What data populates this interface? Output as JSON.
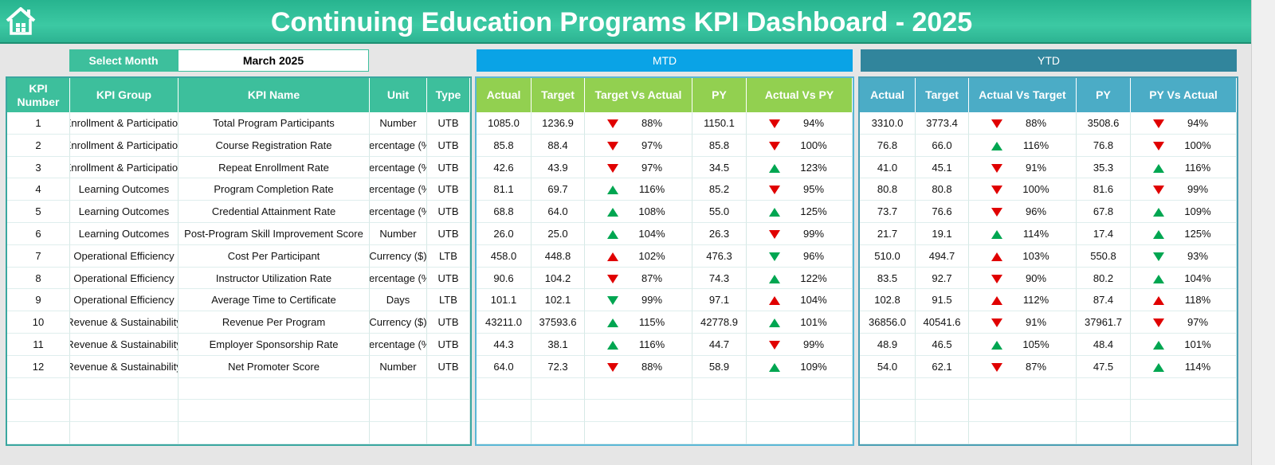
{
  "header": {
    "title": "Continuing Education Programs KPI Dashboard - 2025"
  },
  "month_selector": {
    "label": "Select Month",
    "value": "March 2025"
  },
  "kpi_table": {
    "columns": [
      "KPI Number",
      "KPI Group",
      "KPI Name",
      "Unit",
      "Type"
    ],
    "rows": [
      [
        "1",
        "Enrollment & Participation",
        "Total Program Participants",
        "Number",
        "UTB"
      ],
      [
        "2",
        "Enrollment & Participation",
        "Course Registration Rate",
        "Percentage (%)",
        "UTB"
      ],
      [
        "3",
        "Enrollment & Participation",
        "Repeat Enrollment Rate",
        "Percentage (%)",
        "UTB"
      ],
      [
        "4",
        "Learning Outcomes",
        "Program Completion Rate",
        "Percentage (%)",
        "UTB"
      ],
      [
        "5",
        "Learning Outcomes",
        "Credential Attainment Rate",
        "Percentage (%)",
        "UTB"
      ],
      [
        "6",
        "Learning Outcomes",
        "Post-Program Skill Improvement Score",
        "Number",
        "UTB"
      ],
      [
        "7",
        "Operational Efficiency",
        "Cost Per Participant",
        "Currency ($)",
        "LTB"
      ],
      [
        "8",
        "Operational Efficiency",
        "Instructor Utilization Rate",
        "Percentage (%)",
        "UTB"
      ],
      [
        "9",
        "Operational Efficiency",
        "Average Time to Certificate",
        "Days",
        "LTB"
      ],
      [
        "10",
        "Revenue & Sustainability",
        "Revenue Per Program",
        "Currency ($)",
        "UTB"
      ],
      [
        "11",
        "Revenue & Sustainability",
        "Employer Sponsorship Rate",
        "Percentage (%)",
        "UTB"
      ],
      [
        "12",
        "Revenue & Sustainability",
        "Net Promoter Score",
        "Number",
        "UTB"
      ]
    ]
  },
  "mtd": {
    "label": "MTD",
    "columns": [
      "Actual",
      "Target",
      "Target Vs Actual",
      "PY",
      "Actual Vs PY"
    ],
    "rows": [
      [
        "1085.0",
        "1236.9",
        "88%",
        "1150.1",
        "94%"
      ],
      [
        "85.8",
        "88.4",
        "97%",
        "85.8",
        "100%"
      ],
      [
        "42.6",
        "43.9",
        "97%",
        "34.5",
        "123%"
      ],
      [
        "81.1",
        "69.7",
        "116%",
        "85.2",
        "95%"
      ],
      [
        "68.8",
        "64.0",
        "108%",
        "55.0",
        "125%"
      ],
      [
        "26.0",
        "25.0",
        "104%",
        "26.3",
        "99%"
      ],
      [
        "458.0",
        "448.8",
        "102%",
        "476.3",
        "96%"
      ],
      [
        "90.6",
        "104.2",
        "87%",
        "74.3",
        "122%"
      ],
      [
        "101.1",
        "102.1",
        "99%",
        "97.1",
        "104%"
      ],
      [
        "43211.0",
        "37593.6",
        "115%",
        "42778.9",
        "101%"
      ],
      [
        "44.3",
        "38.1",
        "116%",
        "44.7",
        "99%"
      ],
      [
        "64.0",
        "72.3",
        "88%",
        "58.9",
        "109%"
      ]
    ],
    "arrows": [
      [
        [
          "down",
          "#e00000"
        ],
        [
          "down",
          "#e00000"
        ]
      ],
      [
        [
          "down",
          "#e00000"
        ],
        [
          "down",
          "#e00000"
        ]
      ],
      [
        [
          "down",
          "#e00000"
        ],
        [
          "up",
          "#00a651"
        ]
      ],
      [
        [
          "up",
          "#00a651"
        ],
        [
          "down",
          "#e00000"
        ]
      ],
      [
        [
          "up",
          "#00a651"
        ],
        [
          "up",
          "#00a651"
        ]
      ],
      [
        [
          "up",
          "#00a651"
        ],
        [
          "down",
          "#e00000"
        ]
      ],
      [
        [
          "up",
          "#e00000"
        ],
        [
          "down",
          "#00a651"
        ]
      ],
      [
        [
          "down",
          "#e00000"
        ],
        [
          "up",
          "#00a651"
        ]
      ],
      [
        [
          "down",
          "#00a651"
        ],
        [
          "up",
          "#e00000"
        ]
      ],
      [
        [
          "up",
          "#00a651"
        ],
        [
          "up",
          "#00a651"
        ]
      ],
      [
        [
          "up",
          "#00a651"
        ],
        [
          "down",
          "#e00000"
        ]
      ],
      [
        [
          "down",
          "#e00000"
        ],
        [
          "up",
          "#00a651"
        ]
      ]
    ]
  },
  "ytd": {
    "label": "YTD",
    "columns": [
      "Actual",
      "Target",
      "Actual Vs Target",
      "PY",
      "PY Vs Actual"
    ],
    "rows": [
      [
        "3310.0",
        "3773.4",
        "88%",
        "3508.6",
        "94%"
      ],
      [
        "76.8",
        "66.0",
        "116%",
        "76.8",
        "100%"
      ],
      [
        "41.0",
        "45.1",
        "91%",
        "35.3",
        "116%"
      ],
      [
        "80.8",
        "80.8",
        "100%",
        "81.6",
        "99%"
      ],
      [
        "73.7",
        "76.6",
        "96%",
        "67.8",
        "109%"
      ],
      [
        "21.7",
        "19.1",
        "114%",
        "17.4",
        "125%"
      ],
      [
        "510.0",
        "494.7",
        "103%",
        "550.8",
        "93%"
      ],
      [
        "83.5",
        "92.7",
        "90%",
        "80.2",
        "104%"
      ],
      [
        "102.8",
        "91.5",
        "112%",
        "87.4",
        "118%"
      ],
      [
        "36856.0",
        "40541.6",
        "91%",
        "37961.7",
        "97%"
      ],
      [
        "48.9",
        "46.5",
        "105%",
        "48.4",
        "101%"
      ],
      [
        "54.0",
        "62.1",
        "87%",
        "47.5",
        "114%"
      ]
    ],
    "arrows": [
      [
        [
          "down",
          "#e00000"
        ],
        [
          "down",
          "#e00000"
        ]
      ],
      [
        [
          "up",
          "#00a651"
        ],
        [
          "down",
          "#e00000"
        ]
      ],
      [
        [
          "down",
          "#e00000"
        ],
        [
          "up",
          "#00a651"
        ]
      ],
      [
        [
          "down",
          "#e00000"
        ],
        [
          "down",
          "#e00000"
        ]
      ],
      [
        [
          "down",
          "#e00000"
        ],
        [
          "up",
          "#00a651"
        ]
      ],
      [
        [
          "up",
          "#00a651"
        ],
        [
          "up",
          "#00a651"
        ]
      ],
      [
        [
          "up",
          "#e00000"
        ],
        [
          "down",
          "#00a651"
        ]
      ],
      [
        [
          "down",
          "#e00000"
        ],
        [
          "up",
          "#00a651"
        ]
      ],
      [
        [
          "up",
          "#e00000"
        ],
        [
          "up",
          "#e00000"
        ]
      ],
      [
        [
          "down",
          "#e00000"
        ],
        [
          "down",
          "#e00000"
        ]
      ],
      [
        [
          "up",
          "#00a651"
        ],
        [
          "up",
          "#00a651"
        ]
      ],
      [
        [
          "down",
          "#e00000"
        ],
        [
          "up",
          "#00a651"
        ]
      ]
    ]
  }
}
